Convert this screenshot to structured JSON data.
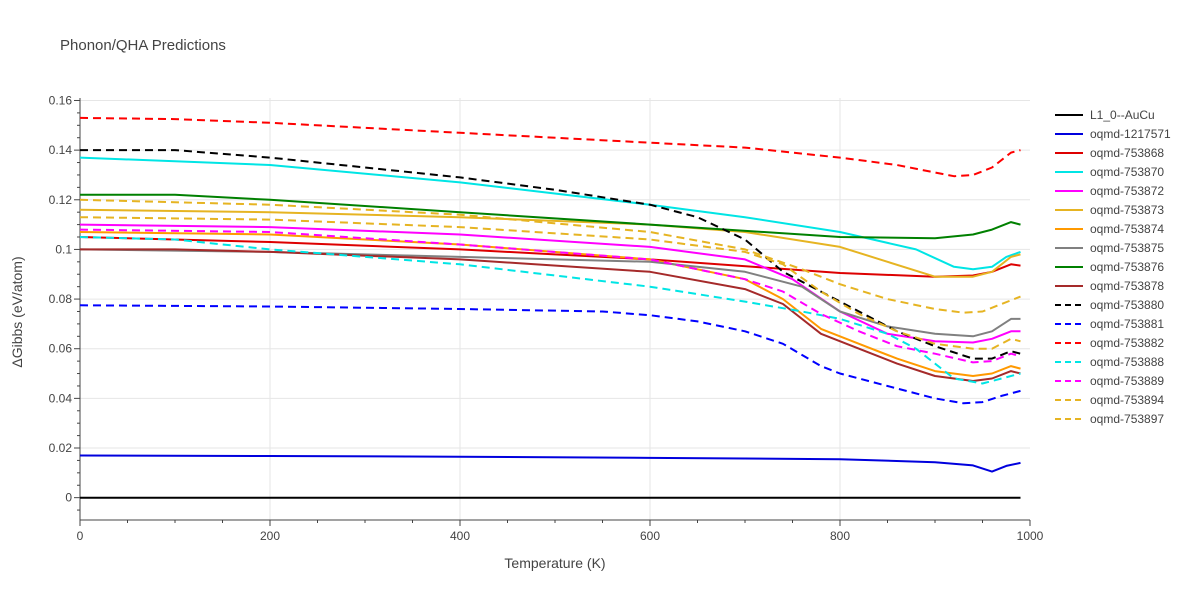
{
  "chart_data": {
    "type": "line",
    "title": "Phonon/QHA Predictions",
    "xlabel": "Temperature (K)",
    "ylabel": "ΔGibbs (eV/atom)",
    "xlim": [
      0,
      1000
    ],
    "ylim": [
      -0.009,
      0.161
    ],
    "xticks": [
      0,
      200,
      400,
      600,
      800,
      1000
    ],
    "yticks": [
      0,
      0.02,
      0.04,
      0.06,
      0.08,
      0.1,
      0.12,
      0.14,
      0.16
    ],
    "ytick_labels": [
      "0",
      "0.02",
      "0.04",
      "0.06",
      "0.08",
      "0.1",
      "0.12",
      "0.14",
      "0.16"
    ],
    "grid": true,
    "legend_position": "right",
    "series": [
      {
        "name": "L1_0--AuCu",
        "color": "#000000",
        "dash": "solid",
        "x": [
          0,
          990
        ],
        "y": [
          0,
          0
        ]
      },
      {
        "name": "oqmd-1217571",
        "color": "#0000dd",
        "dash": "solid",
        "x": [
          0,
          200,
          400,
          600,
          800,
          900,
          940,
          960,
          975,
          990
        ],
        "y": [
          0.017,
          0.0168,
          0.0165,
          0.016,
          0.0155,
          0.0143,
          0.013,
          0.0105,
          0.0128,
          0.014
        ]
      },
      {
        "name": "oqmd-753868",
        "color": "#dd0000",
        "dash": "solid",
        "x": [
          0,
          200,
          400,
          600,
          800,
          900,
          940,
          960,
          980,
          990
        ],
        "y": [
          0.105,
          0.103,
          0.1,
          0.096,
          0.0905,
          0.089,
          0.0895,
          0.091,
          0.094,
          0.0935
        ]
      },
      {
        "name": "oqmd-753870",
        "color": "#00e5e5",
        "dash": "solid",
        "x": [
          0,
          200,
          400,
          600,
          700,
          800,
          880,
          920,
          940,
          960,
          975,
          990
        ],
        "y": [
          0.137,
          0.134,
          0.127,
          0.118,
          0.113,
          0.107,
          0.1,
          0.093,
          0.092,
          0.093,
          0.097,
          0.099
        ]
      },
      {
        "name": "oqmd-753872",
        "color": "#ff00ff",
        "dash": "solid",
        "x": [
          0,
          200,
          400,
          600,
          700,
          750,
          800,
          850,
          900,
          940,
          960,
          980,
          990
        ],
        "y": [
          0.11,
          0.109,
          0.106,
          0.101,
          0.096,
          0.088,
          0.075,
          0.066,
          0.063,
          0.0625,
          0.064,
          0.067,
          0.067
        ]
      },
      {
        "name": "oqmd-753873",
        "color": "#e6b422",
        "dash": "solid",
        "x": [
          0,
          200,
          400,
          600,
          700,
          800,
          850,
          900,
          940,
          960,
          980,
          990
        ],
        "y": [
          0.116,
          0.115,
          0.113,
          0.11,
          0.107,
          0.101,
          0.095,
          0.089,
          0.089,
          0.091,
          0.097,
          0.098
        ]
      },
      {
        "name": "oqmd-753874",
        "color": "#ff9900",
        "dash": "solid",
        "x": [
          0,
          200,
          400,
          600,
          700,
          740,
          780,
          820,
          860,
          900,
          940,
          960,
          980,
          990
        ],
        "y": [
          0.107,
          0.106,
          0.102,
          0.096,
          0.088,
          0.08,
          0.068,
          0.062,
          0.056,
          0.051,
          0.049,
          0.05,
          0.053,
          0.052
        ]
      },
      {
        "name": "oqmd-753875",
        "color": "#808080",
        "dash": "solid",
        "x": [
          0,
          200,
          400,
          600,
          700,
          760,
          800,
          850,
          900,
          940,
          960,
          980,
          990
        ],
        "y": [
          0.1,
          0.099,
          0.097,
          0.095,
          0.091,
          0.085,
          0.075,
          0.069,
          0.066,
          0.065,
          0.067,
          0.072,
          0.072
        ]
      },
      {
        "name": "oqmd-753876",
        "color": "#008000",
        "dash": "solid",
        "x": [
          0,
          100,
          200,
          400,
          600,
          800,
          900,
          940,
          960,
          980,
          990
        ],
        "y": [
          0.122,
          0.122,
          0.12,
          0.115,
          0.11,
          0.105,
          0.1045,
          0.106,
          0.108,
          0.111,
          0.11
        ]
      },
      {
        "name": "oqmd-753878",
        "color": "#a52a2a",
        "dash": "solid",
        "x": [
          0,
          100,
          200,
          400,
          600,
          700,
          740,
          780,
          820,
          860,
          900,
          940,
          960,
          980,
          990
        ],
        "y": [
          0.1,
          0.1,
          0.099,
          0.096,
          0.091,
          0.084,
          0.078,
          0.066,
          0.06,
          0.054,
          0.049,
          0.047,
          0.048,
          0.051,
          0.05
        ]
      },
      {
        "name": "oqmd-753880",
        "color": "#000000",
        "dash": "dash",
        "x": [
          0,
          100,
          200,
          400,
          500,
          600,
          650,
          700,
          740,
          780,
          820,
          860,
          900,
          940,
          960,
          980,
          990
        ],
        "y": [
          0.14,
          0.14,
          0.137,
          0.129,
          0.124,
          0.118,
          0.113,
          0.104,
          0.091,
          0.083,
          0.075,
          0.067,
          0.061,
          0.056,
          0.056,
          0.059,
          0.058
        ]
      },
      {
        "name": "oqmd-753881",
        "color": "#0000ff",
        "dash": "dash",
        "x": [
          0,
          200,
          400,
          550,
          600,
          650,
          700,
          740,
          780,
          800,
          850,
          900,
          930,
          950,
          970,
          990
        ],
        "y": [
          0.0775,
          0.077,
          0.076,
          0.075,
          0.0735,
          0.071,
          0.067,
          0.062,
          0.053,
          0.05,
          0.045,
          0.04,
          0.038,
          0.0385,
          0.041,
          0.043
        ]
      },
      {
        "name": "oqmd-753882",
        "color": "#ff0000",
        "dash": "dash",
        "x": [
          0,
          100,
          200,
          400,
          600,
          700,
          800,
          860,
          900,
          920,
          940,
          960,
          980,
          990
        ],
        "y": [
          0.153,
          0.1525,
          0.151,
          0.147,
          0.143,
          0.141,
          0.137,
          0.134,
          0.131,
          0.1295,
          0.13,
          0.133,
          0.139,
          0.14
        ]
      },
      {
        "name": "oqmd-753888",
        "color": "#00e5e5",
        "dash": "dash",
        "x": [
          0,
          100,
          200,
          400,
          600,
          700,
          760,
          800,
          850,
          880,
          920,
          950,
          970,
          990
        ],
        "y": [
          0.105,
          0.104,
          0.1,
          0.094,
          0.085,
          0.079,
          0.075,
          0.072,
          0.066,
          0.06,
          0.048,
          0.046,
          0.048,
          0.05
        ]
      },
      {
        "name": "oqmd-753889",
        "color": "#ff00ff",
        "dash": "dash",
        "x": [
          0,
          200,
          400,
          600,
          700,
          740,
          780,
          820,
          860,
          900,
          940,
          960,
          980,
          990
        ],
        "y": [
          0.108,
          0.107,
          0.102,
          0.096,
          0.088,
          0.083,
          0.074,
          0.067,
          0.061,
          0.058,
          0.0545,
          0.055,
          0.058,
          0.057
        ]
      },
      {
        "name": "oqmd-753894",
        "color": "#e6b422",
        "dash": "dash",
        "x": [
          0,
          200,
          400,
          600,
          700,
          740,
          780,
          820,
          860,
          900,
          940,
          960,
          980,
          990
        ],
        "y": [
          0.113,
          0.112,
          0.109,
          0.104,
          0.099,
          0.094,
          0.083,
          0.074,
          0.067,
          0.062,
          0.06,
          0.06,
          0.064,
          0.063
        ]
      },
      {
        "name": "oqmd-753897",
        "color": "#e6b422",
        "dash": "dash",
        "x": [
          0,
          200,
          400,
          600,
          700,
          760,
          800,
          850,
          900,
          930,
          950,
          970,
          990
        ],
        "y": [
          0.12,
          0.118,
          0.114,
          0.107,
          0.1,
          0.092,
          0.086,
          0.08,
          0.076,
          0.0745,
          0.075,
          0.078,
          0.081
        ]
      }
    ]
  }
}
